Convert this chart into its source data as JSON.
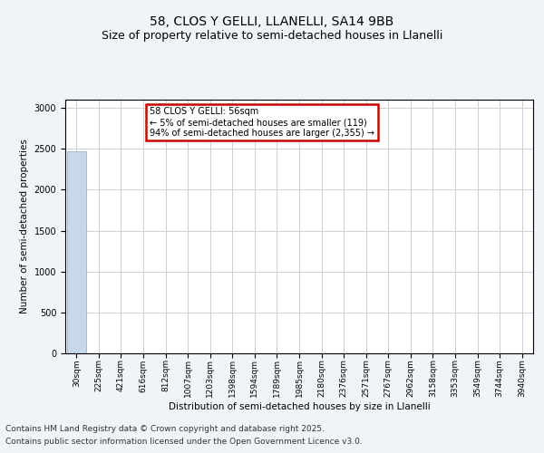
{
  "title": "58, CLOS Y GELLI, LLANELLI, SA14 9BB",
  "subtitle": "Size of property relative to semi-detached houses in Llanelli",
  "xlabel": "Distribution of semi-detached houses by size in Llanelli",
  "ylabel": "Number of semi-detached properties",
  "annotation_title": "58 CLOS Y GELLI: 56sqm",
  "annotation_line1": "← 5% of semi-detached houses are smaller (119)",
  "annotation_line2": "94% of semi-detached houses are larger (2,355) →",
  "footer_line1": "Contains HM Land Registry data © Crown copyright and database right 2025.",
  "footer_line2": "Contains public sector information licensed under the Open Government Licence v3.0.",
  "bar_labels": [
    "30sqm",
    "225sqm",
    "421sqm",
    "616sqm",
    "812sqm",
    "1007sqm",
    "1203sqm",
    "1398sqm",
    "1594sqm",
    "1789sqm",
    "1985sqm",
    "2180sqm",
    "2376sqm",
    "2571sqm",
    "2767sqm",
    "2962sqm",
    "3158sqm",
    "3353sqm",
    "3549sqm",
    "3744sqm",
    "3940sqm"
  ],
  "bar_values": [
    2474,
    2,
    1,
    0,
    0,
    0,
    0,
    0,
    0,
    0,
    0,
    0,
    0,
    0,
    0,
    0,
    0,
    0,
    0,
    0,
    0
  ],
  "bar_color": "#c8d8e8",
  "bar_edge_color": "#8aaabf",
  "annotation_box_color": "#cc0000",
  "annotation_fill": "#ffffff",
  "ylim": [
    0,
    3100
  ],
  "yticks": [
    0,
    500,
    1000,
    1500,
    2000,
    2500,
    3000
  ],
  "grid_color": "#c8d0d8",
  "bg_color": "#f0f4f8",
  "plot_bg_color": "#ffffff",
  "title_fontsize": 10,
  "subtitle_fontsize": 9,
  "tick_fontsize": 6.5,
  "ylabel_fontsize": 7.5,
  "xlabel_fontsize": 7.5,
  "footer_fontsize": 6.5,
  "annotation_fontsize": 7
}
